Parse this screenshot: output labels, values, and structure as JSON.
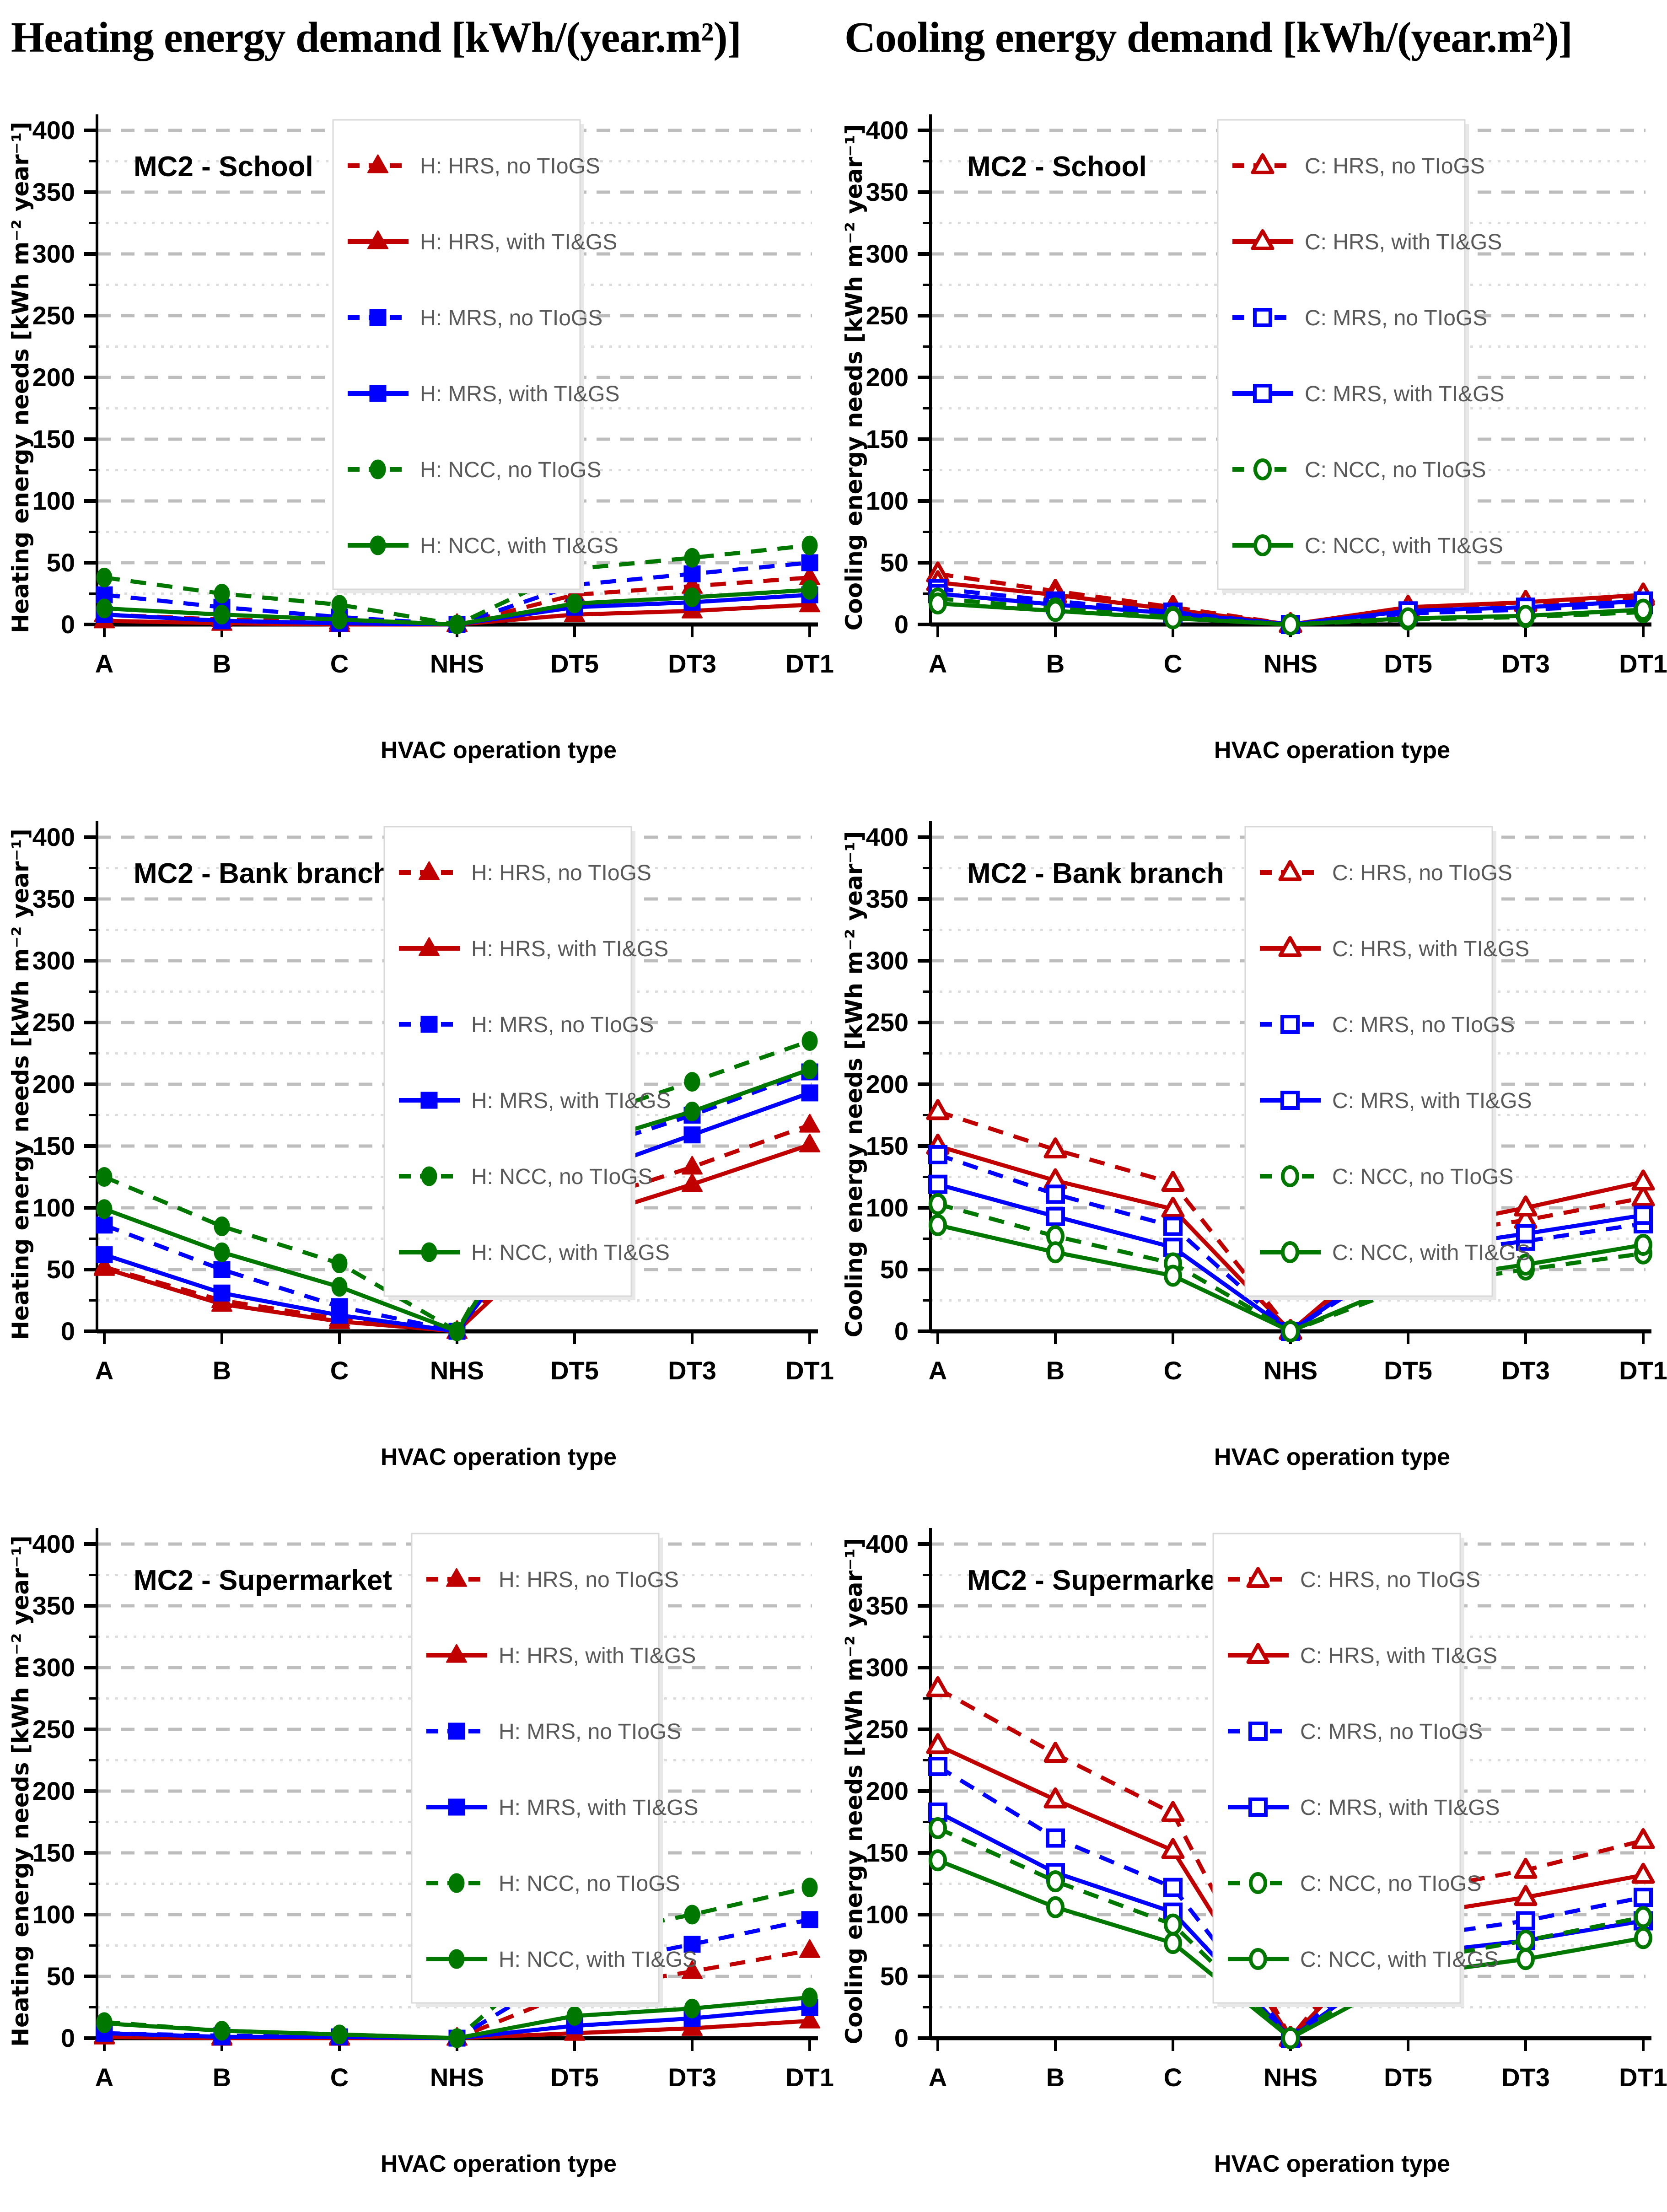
{
  "headers": {
    "left": "Heating energy demand [kWh/(year.m²)]",
    "right": "Cooling energy demand [kWh/(year.m²)]"
  },
  "style": {
    "red": "#C00000",
    "blue": "#0000FF",
    "green": "#007800",
    "legend_text": "#595959",
    "grid_major": "#BDBDBD",
    "grid_minor": "#DCDCDC",
    "axis": "#000000",
    "legend_border": "#D9D9D9",
    "legend_shadow": "#E8E8E8"
  },
  "axes": {
    "categories": [
      "A",
      "B",
      "C",
      "NHS",
      "DT5",
      "DT3",
      "DT1"
    ],
    "xlabel": "HVAC operation type",
    "ylim": [
      0,
      400
    ],
    "ytick_step": 50,
    "yminor_step": 25,
    "ytick_labels": [
      "0",
      "50",
      "100",
      "150",
      "200",
      "250",
      "300",
      "350",
      "400"
    ],
    "grid": "on",
    "legend_position": "inside-top"
  },
  "chart_data": [
    {
      "id": "school-heating",
      "type": "line",
      "panel_label": "MC2 - School",
      "ylabel": "Heating energy needs  [kWh m⁻² year⁻¹]",
      "legend_x": 728,
      "series": [
        {
          "name": "H: HRS, no TIoGS",
          "color": "#C00000",
          "dash": true,
          "marker": "triangle",
          "marker_fill": "filled",
          "values": [
            8,
            4,
            2,
            0,
            24,
            31,
            38
          ]
        },
        {
          "name": "H: HRS, with TI&GS",
          "color": "#C00000",
          "dash": false,
          "marker": "triangle",
          "marker_fill": "filled",
          "values": [
            3,
            1,
            0,
            0,
            8,
            11,
            16
          ]
        },
        {
          "name": "H: MRS, no TIoGS",
          "color": "#0000FF",
          "dash": true,
          "marker": "square",
          "marker_fill": "filled",
          "values": [
            24,
            14,
            6,
            0,
            32,
            41,
            50
          ]
        },
        {
          "name": "H: MRS, with TI&GS",
          "color": "#0000FF",
          "dash": false,
          "marker": "square",
          "marker_fill": "filled",
          "values": [
            8,
            3,
            1,
            0,
            14,
            18,
            24
          ]
        },
        {
          "name": "H: NCC, no TIoGS",
          "color": "#007800",
          "dash": true,
          "marker": "circle",
          "marker_fill": "filled",
          "values": [
            38,
            25,
            16,
            0,
            45,
            54,
            64
          ]
        },
        {
          "name": "H: NCC, with TI&GS",
          "color": "#007800",
          "dash": false,
          "marker": "circle",
          "marker_fill": "filled",
          "values": [
            13,
            8,
            4,
            0,
            17,
            22,
            28
          ]
        }
      ]
    },
    {
      "id": "school-cooling",
      "type": "line",
      "panel_label": "MC2 - School",
      "ylabel": "Cooling energy needs  [kWh m⁻² year⁻¹]",
      "legend_x": 840,
      "series": [
        {
          "name": "C: HRS, no TIoGS",
          "color": "#C00000",
          "dash": true,
          "marker": "triangle",
          "marker_fill": "open",
          "values": [
            41,
            27,
            14,
            0,
            13,
            17,
            22
          ]
        },
        {
          "name": "C: HRS, with TI&GS",
          "color": "#C00000",
          "dash": false,
          "marker": "triangle",
          "marker_fill": "open",
          "values": [
            34,
            24,
            12,
            0,
            14,
            18,
            24
          ]
        },
        {
          "name": "C: MRS, no TIoGS",
          "color": "#0000FF",
          "dash": true,
          "marker": "square",
          "marker_fill": "open",
          "values": [
            29,
            19,
            10,
            0,
            9,
            12,
            16
          ]
        },
        {
          "name": "C: MRS, with TI&GS",
          "color": "#0000FF",
          "dash": false,
          "marker": "square",
          "marker_fill": "open",
          "values": [
            25,
            16,
            9,
            0,
            11,
            14,
            19
          ]
        },
        {
          "name": "C: NCC, no TIoGS",
          "color": "#007800",
          "dash": true,
          "marker": "circle",
          "marker_fill": "open",
          "values": [
            21,
            13,
            6,
            0,
            4,
            6,
            10
          ]
        },
        {
          "name": "C: NCC, with TI&GS",
          "color": "#007800",
          "dash": false,
          "marker": "circle",
          "marker_fill": "open",
          "values": [
            17,
            11,
            5,
            0,
            5,
            7,
            12
          ]
        }
      ]
    },
    {
      "id": "bank-heating",
      "type": "line",
      "panel_label": "MC2 - Bank branch",
      "ylabel": "Heating energy needs  [kWh m⁻² year⁻¹]",
      "legend_x": 840,
      "series": [
        {
          "name": "H: HRS, no TIoGS",
          "color": "#C00000",
          "dash": true,
          "marker": "triangle",
          "marker_fill": "filled",
          "values": [
            52,
            25,
            10,
            0,
            102,
            133,
            167
          ]
        },
        {
          "name": "H: HRS, with TI&GS",
          "color": "#C00000",
          "dash": false,
          "marker": "triangle",
          "marker_fill": "filled",
          "values": [
            51,
            22,
            8,
            0,
            89,
            119,
            151
          ]
        },
        {
          "name": "H: MRS, no TIoGS",
          "color": "#0000FF",
          "dash": true,
          "marker": "square",
          "marker_fill": "filled",
          "values": [
            86,
            50,
            20,
            0,
            144,
            175,
            210
          ]
        },
        {
          "name": "H: MRS, with TI&GS",
          "color": "#0000FF",
          "dash": false,
          "marker": "square",
          "marker_fill": "filled",
          "values": [
            62,
            31,
            13,
            0,
            125,
            159,
            193
          ]
        },
        {
          "name": "H: NCC, no TIoGS",
          "color": "#007800",
          "dash": true,
          "marker": "circle",
          "marker_fill": "filled",
          "values": [
            125,
            85,
            55,
            0,
            170,
            202,
            235
          ]
        },
        {
          "name": "H: NCC, with TI&GS",
          "color": "#007800",
          "dash": false,
          "marker": "circle",
          "marker_fill": "filled",
          "values": [
            99,
            64,
            36,
            0,
            149,
            178,
            212
          ]
        }
      ]
    },
    {
      "id": "bank-cooling",
      "type": "line",
      "panel_label": "MC2 - Bank branch",
      "ylabel": "Cooling energy needs  [kWh m⁻² year⁻¹]",
      "legend_x": 900,
      "series": [
        {
          "name": "C: HRS, no TIoGS",
          "color": "#C00000",
          "dash": true,
          "marker": "triangle",
          "marker_fill": "open",
          "values": [
            178,
            147,
            120,
            0,
            76,
            90,
            108
          ]
        },
        {
          "name": "C: HRS, with TI&GS",
          "color": "#C00000",
          "dash": false,
          "marker": "triangle",
          "marker_fill": "open",
          "values": [
            150,
            122,
            99,
            0,
            81,
            100,
            121
          ]
        },
        {
          "name": "C: MRS, no TIoGS",
          "color": "#0000FF",
          "dash": true,
          "marker": "square",
          "marker_fill": "open",
          "values": [
            143,
            111,
            85,
            0,
            61,
            73,
            87
          ]
        },
        {
          "name": "C: MRS, with TI&GS",
          "color": "#0000FF",
          "dash": false,
          "marker": "square",
          "marker_fill": "open",
          "values": [
            119,
            93,
            68,
            0,
            65,
            79,
            94
          ]
        },
        {
          "name": "C: NCC, no TIoGS",
          "color": "#007800",
          "dash": true,
          "marker": "circle",
          "marker_fill": "open",
          "values": [
            103,
            77,
            55,
            0,
            36,
            50,
            63
          ]
        },
        {
          "name": "C: NCC, with TI&GS",
          "color": "#007800",
          "dash": false,
          "marker": "circle",
          "marker_fill": "open",
          "values": [
            86,
            64,
            45,
            0,
            40,
            54,
            70
          ]
        }
      ]
    },
    {
      "id": "supermarket-heating",
      "type": "line",
      "panel_label": "MC2 - Supermarket",
      "ylabel": "Heating energy needs  [kWh m⁻² year⁻¹]",
      "legend_x": 900,
      "series": [
        {
          "name": "H: HRS, no TIoGS",
          "color": "#C00000",
          "dash": true,
          "marker": "triangle",
          "marker_fill": "filled",
          "values": [
            2,
            1,
            1,
            0,
            38,
            54,
            71
          ]
        },
        {
          "name": "H: HRS, with TI&GS",
          "color": "#C00000",
          "dash": false,
          "marker": "triangle",
          "marker_fill": "filled",
          "values": [
            1,
            0,
            0,
            0,
            4,
            8,
            14
          ]
        },
        {
          "name": "H: MRS, no TIoGS",
          "color": "#0000FF",
          "dash": true,
          "marker": "square",
          "marker_fill": "filled",
          "values": [
            4,
            2,
            1,
            0,
            57,
            76,
            96
          ]
        },
        {
          "name": "H: MRS, with TI&GS",
          "color": "#0000FF",
          "dash": false,
          "marker": "square",
          "marker_fill": "filled",
          "values": [
            4,
            1,
            1,
            0,
            10,
            16,
            25
          ]
        },
        {
          "name": "H: NCC, no TIoGS",
          "color": "#007800",
          "dash": true,
          "marker": "circle",
          "marker_fill": "filled",
          "values": [
            13,
            6,
            3,
            0,
            81,
            100,
            122
          ]
        },
        {
          "name": "H: NCC, with TI&GS",
          "color": "#007800",
          "dash": false,
          "marker": "circle",
          "marker_fill": "filled",
          "values": [
            12,
            6,
            3,
            0,
            18,
            24,
            33
          ]
        }
      ]
    },
    {
      "id": "supermarket-cooling",
      "type": "line",
      "panel_label": "MC2 - Supermarket",
      "ylabel": "Cooling energy needs  [kWh m⁻² year⁻¹]",
      "legend_x": 830,
      "series": [
        {
          "name": "C: HRS, no TIoGS",
          "color": "#C00000",
          "dash": true,
          "marker": "triangle",
          "marker_fill": "open",
          "values": [
            283,
            230,
            182,
            0,
            118,
            136,
            160
          ]
        },
        {
          "name": "C: HRS, with TI&GS",
          "color": "#C00000",
          "dash": false,
          "marker": "triangle",
          "marker_fill": "open",
          "values": [
            237,
            193,
            152,
            0,
            99,
            114,
            132
          ]
        },
        {
          "name": "C: MRS, no TIoGS",
          "color": "#0000FF",
          "dash": true,
          "marker": "square",
          "marker_fill": "open",
          "values": [
            220,
            162,
            122,
            0,
            81,
            95,
            114
          ]
        },
        {
          "name": "C: MRS, with TI&GS",
          "color": "#0000FF",
          "dash": false,
          "marker": "square",
          "marker_fill": "open",
          "values": [
            183,
            134,
            102,
            0,
            68,
            79,
            95
          ]
        },
        {
          "name": "C: NCC, no TIoGS",
          "color": "#007800",
          "dash": true,
          "marker": "circle",
          "marker_fill": "open",
          "values": [
            170,
            127,
            92,
            0,
            62,
            79,
            98
          ]
        },
        {
          "name": "C: NCC, with TI&GS",
          "color": "#007800",
          "dash": false,
          "marker": "circle",
          "marker_fill": "open",
          "values": [
            144,
            106,
            77,
            0,
            51,
            64,
            81
          ]
        }
      ]
    }
  ]
}
